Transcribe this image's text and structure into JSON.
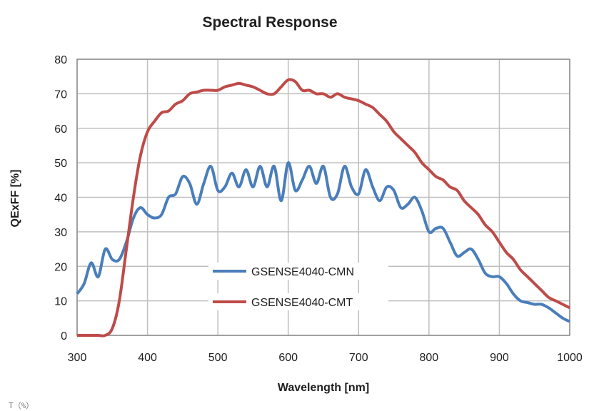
{
  "footnote": "T（%）",
  "chart_data": {
    "type": "line",
    "title": "Spectral Response",
    "xlabel": "Wavelength [nm]",
    "ylabel": "QExFF [%]",
    "xlim": [
      300,
      1000
    ],
    "ylim": [
      0,
      80
    ],
    "xticks": [
      300,
      400,
      500,
      600,
      700,
      800,
      900,
      1000
    ],
    "yticks": [
      0,
      10,
      20,
      30,
      40,
      50,
      60,
      70,
      80
    ],
    "grid": true,
    "legend_position": "bottom-center",
    "series": [
      {
        "name": "GSENSE4040-CMN",
        "color": "#4a7ebb",
        "x": [
          300,
          310,
          320,
          330,
          340,
          350,
          360,
          370,
          380,
          390,
          400,
          410,
          420,
          430,
          440,
          450,
          460,
          470,
          480,
          490,
          500,
          510,
          520,
          530,
          540,
          550,
          560,
          570,
          580,
          590,
          600,
          610,
          620,
          630,
          640,
          650,
          660,
          670,
          680,
          690,
          700,
          710,
          720,
          730,
          740,
          750,
          760,
          770,
          780,
          790,
          800,
          810,
          820,
          830,
          840,
          850,
          860,
          870,
          880,
          890,
          900,
          910,
          920,
          930,
          940,
          950,
          960,
          970,
          980,
          990,
          1000
        ],
        "y": [
          12,
          15,
          21,
          17,
          25,
          22,
          22,
          27,
          34,
          37,
          35,
          34,
          35,
          40,
          41,
          46,
          44,
          38,
          44,
          49,
          42,
          43,
          47,
          43,
          48,
          43,
          49,
          43,
          49,
          39,
          50,
          42,
          45,
          49,
          44,
          49,
          40,
          41,
          49,
          43,
          41,
          48,
          43,
          39,
          43,
          42,
          37,
          38,
          40,
          36,
          30,
          31,
          31,
          27,
          23,
          24,
          25,
          22,
          18,
          17,
          17,
          15,
          12,
          10,
          9.5,
          9,
          9,
          8,
          6.5,
          5,
          4
        ]
      },
      {
        "name": "GSENSE4040-CMT",
        "color": "#be4b48",
        "x": [
          300,
          310,
          320,
          330,
          340,
          350,
          360,
          370,
          380,
          390,
          400,
          410,
          420,
          430,
          440,
          450,
          460,
          470,
          480,
          490,
          500,
          510,
          520,
          530,
          540,
          550,
          560,
          570,
          580,
          590,
          600,
          610,
          620,
          630,
          640,
          650,
          660,
          670,
          680,
          690,
          700,
          710,
          720,
          730,
          740,
          750,
          760,
          770,
          780,
          790,
          800,
          810,
          820,
          830,
          840,
          850,
          860,
          870,
          880,
          890,
          900,
          910,
          920,
          930,
          940,
          950,
          960,
          970,
          980,
          990,
          1000
        ],
        "y": [
          0,
          0,
          0,
          0,
          0,
          2,
          10,
          25,
          40,
          52,
          59,
          62,
          64.5,
          65,
          67,
          68,
          70,
          70.5,
          71,
          71,
          71,
          72,
          72.5,
          73,
          72.5,
          72,
          71,
          70,
          70,
          72,
          74,
          73.5,
          71,
          71,
          70,
          70,
          69,
          70,
          69,
          68.5,
          68,
          67,
          66,
          64,
          62,
          59,
          57,
          55,
          53,
          50,
          48,
          46,
          45,
          43,
          42,
          39,
          37,
          35,
          32,
          30,
          27,
          24,
          22,
          19,
          17,
          15,
          13,
          11,
          10,
          9,
          8
        ]
      }
    ]
  }
}
